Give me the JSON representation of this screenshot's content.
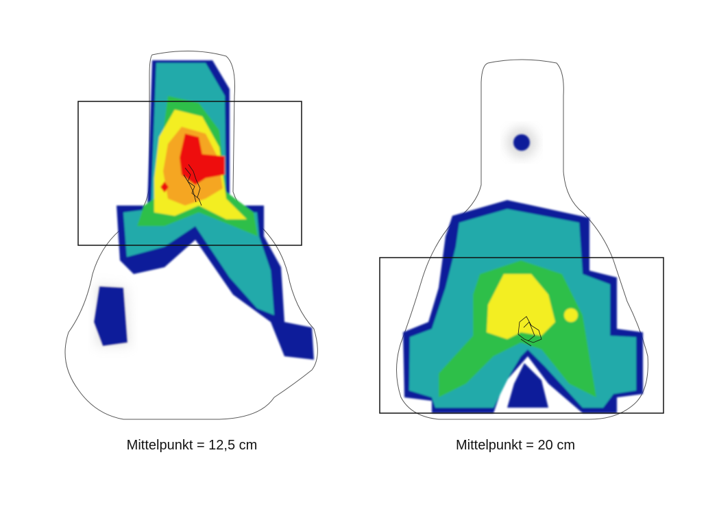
{
  "panels": [
    {
      "caption": "Mittelpunkt = 12,5 cm"
    },
    {
      "caption": "Mittelpunkt = 20 cm"
    }
  ]
}
